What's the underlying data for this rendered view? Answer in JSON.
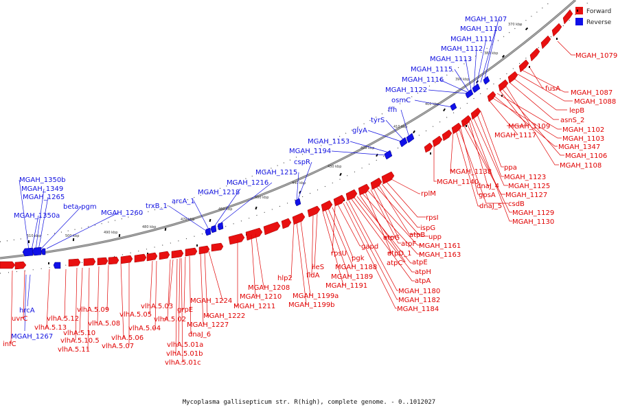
{
  "legend": {
    "forward_label": "Forward",
    "reverse_label": "Reverse",
    "forward_color": "#e81010",
    "reverse_color": "#1010e8"
  },
  "caption": "Mycoplasma gallisepticum str. R(high), complete genome. - 0..1012027",
  "kbp_labels": [
    "370 kbp",
    "380 kbp",
    "390 kbp",
    "400 kbp",
    "410 kbp",
    "420 kbp",
    "430 kbp",
    "440 kbp",
    "450 kbp",
    "460 kbp",
    "470 kbp",
    "480 kbp",
    "490 kbp",
    "500 kbp",
    "510 kbp"
  ],
  "forward_labels": [
    "MGAH_1079",
    "fusA",
    "MGAH_1087",
    "MGAH_1088",
    "lepB",
    "asnS_2",
    "MGAH_1109",
    "MGAH_1102",
    "MGAH_1117",
    "MGAH_1103",
    "MGAH_1347",
    "MGAH_1106",
    "MGAH_1108",
    "ppa",
    "MGAH_1138",
    "MGAH_1123",
    "MGAH_1140",
    "dnaJ_4",
    "MGAH_1125",
    "gpsA",
    "MGAH_1127",
    "csdB",
    "dnaJ_5",
    "MGAH_1129",
    "MGAH_1130",
    "rplM",
    "rpsI",
    "ispG",
    "atpB",
    "upp",
    "atpG",
    "atpF",
    "MGAH_1161",
    "atpD_1",
    "MGAH_1163",
    "atpE",
    "atpC",
    "atpH",
    "atpA",
    "MGAH_1180",
    "MGAH_1182",
    "MGAH_1184",
    "gapd",
    "rpsU",
    "pgk",
    "MGAH_1188",
    "MGAH_1189",
    "MGAH_1191",
    "ileS",
    "fldA",
    "hlp2",
    "MGAH_1199a",
    "MGAH_1199b",
    "MGAH_1208",
    "MGAH_1210",
    "MGAH_1211",
    "MGAH_1224",
    "MGAH_1222",
    "MGAH_1227",
    "grpE",
    "dnaJ_6",
    "vlhA.5.03",
    "vlhA.5.02",
    "vlhA.5.01a",
    "vlhA.5.01b",
    "vlhA.5.01c",
    "vlhA.5.05",
    "vlhA.5.04",
    "vlhA.5.09",
    "vlhA.5.08",
    "vlhA.5.06",
    "vlhA.5.07",
    "vlhA.5.12",
    "vlhA.5.13",
    "vlhA.5.10",
    "vlhA.5.10.5",
    "vlhA.5.11",
    "uvrC",
    "infC"
  ],
  "reverse_labels": [
    "MGAH_1107",
    "MGAH_1110",
    "MGAH_1111",
    "MGAH_1112",
    "MGAH_1113",
    "MGAH_1115",
    "MGAH_1116",
    "MGAH_1122",
    "osmC",
    "ffh",
    "tyrS",
    "glyA",
    "MGAH_1153",
    "MGAH_1194",
    "cspR",
    "MGAH_1215",
    "MGAH_1216",
    "MGAH_1218",
    "arcA_1",
    "trxB_1",
    "MGAH_1260",
    "beta-pgm",
    "MGAH_1350b",
    "MGAH_1349",
    "MGAH_1265",
    "MGAH_1350a",
    "hrcA",
    "MGAH_1267"
  ]
}
